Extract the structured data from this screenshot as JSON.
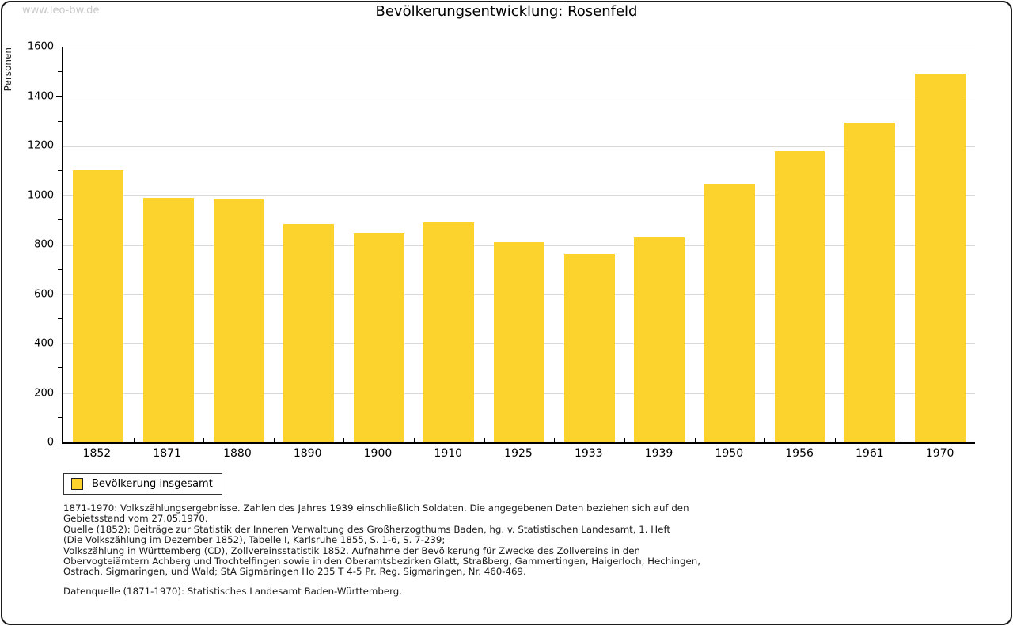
{
  "watermark": "www.leo-bw.de",
  "title": "Bevölkerungsentwicklung: Rosenfeld",
  "y_axis_title": "Personen",
  "legend": {
    "label": "Bevölkerung insgesamt"
  },
  "footnotes": [
    "1871-1970: Volkszählungsergebnisse. Zahlen des Jahres 1939 einschließlich Soldaten. Die angegebenen Daten beziehen sich auf den",
    "Gebietsstand vom 27.05.1970.",
    "Quelle (1852): Beiträge zur Statistik der Inneren Verwaltung des Großherzogthums Baden, hg. v. Statistischen Landesamt, 1. Heft",
    "(Die Volkszählung im Dezember 1852), Tabelle I, Karlsruhe 1855, S. 1-6, S. 7-239;",
    "Volkszählung in Württemberg (CD), Zollvereinsstatistik 1852. Aufnahme der Bevölkerung für Zwecke des Zollvereins in den",
    "Obervogteiämtern Achberg und Trochtelfingen sowie in den Oberamtsbezirken Glatt, Straßberg, Gammertingen, Haigerloch, Hechingen,",
    "Ostrach, Sigmaringen, und Wald; StA Sigmaringen Ho 235 T 4-5 Pr. Reg. Sigmaringen, Nr. 460-469."
  ],
  "datasource": "Datenquelle (1871-1970): Statistisches Landesamt Baden-Württemberg.",
  "chart_data": {
    "type": "bar",
    "title": "Bevölkerungsentwicklung: Rosenfeld",
    "categories": [
      "1852",
      "1871",
      "1880",
      "1890",
      "1900",
      "1910",
      "1925",
      "1933",
      "1939",
      "1950",
      "1956",
      "1961",
      "1970"
    ],
    "series": [
      {
        "name": "Bevölkerung insgesamt",
        "values": [
          1103,
          991,
          985,
          886,
          848,
          890,
          810,
          763,
          829,
          1048,
          1180,
          1295,
          1493
        ]
      }
    ],
    "xlabel": "",
    "ylabel": "Personen",
    "ylim": [
      0,
      1600
    ],
    "y_major_step": 200,
    "y_minor_step": 100,
    "grid": "horizontal-major",
    "legend_position": "below-left",
    "bar_color": "#FCD32D",
    "gridline_color": "#d9d9d9"
  }
}
